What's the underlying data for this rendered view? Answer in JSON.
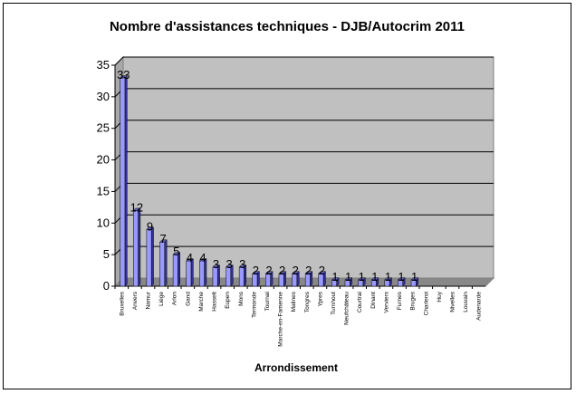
{
  "chart_data": {
    "type": "bar",
    "title": "Nombre d'assistances techniques  - DJB/Autocrim 2011",
    "xlabel": "Arrondissement",
    "ylabel": "",
    "ylim": [
      0,
      35
    ],
    "yticks": [
      0,
      5,
      10,
      15,
      20,
      25,
      30,
      35
    ],
    "grid": true,
    "legend": "none",
    "categories": [
      "Bruxelles",
      "Anvers",
      "Namur",
      "Liège",
      "Arlon",
      "Gand",
      "Marche",
      "Hasselt",
      "Eupen",
      "Mons",
      "Termonde",
      "Tournai",
      "Marche-en-Famenne",
      "Malines",
      "Tongres",
      "Ypres",
      "Turnhout",
      "Neufchâteau",
      "Courtrai",
      "Dinant",
      "Verviers",
      "Furnes",
      "Bruges",
      "Charleroi",
      "Huy",
      "Nivelles",
      "Louvain",
      "Audenarde"
    ],
    "values": [
      33,
      12,
      9,
      7,
      5,
      4,
      4,
      3,
      3,
      3,
      2,
      2,
      2,
      2,
      2,
      2,
      1,
      1,
      1,
      1,
      1,
      1,
      1,
      0,
      0,
      0,
      0,
      0
    ],
    "colors": {
      "bar_face": "#9999ff",
      "bar_dark": "#333399",
      "bar_top": "#6666cc",
      "plot_wall": "#c0c0c0",
      "floor": "#888888"
    }
  }
}
